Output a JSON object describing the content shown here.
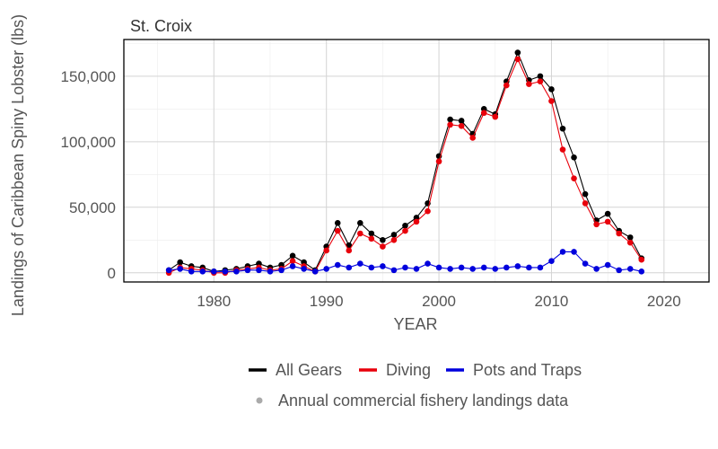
{
  "chart_data": {
    "type": "line",
    "title": "St. Croix",
    "xlabel": "YEAR",
    "ylabel": "Landings of Caribbean Spiny Lobster (lbs)",
    "xlim": [
      1972,
      2024
    ],
    "ylim": [
      -7000,
      178000
    ],
    "x_ticks": [
      1980,
      1990,
      2000,
      2010,
      2020
    ],
    "y_ticks": [
      0,
      50000,
      100000,
      150000
    ],
    "y_tick_labels": [
      "0",
      "50,000",
      "100,000",
      "150,000"
    ],
    "grid": true,
    "legend_position": "bottom",
    "legend_note": "Annual commercial fishery landings data",
    "x": [
      1976,
      1977,
      1978,
      1979,
      1980,
      1981,
      1982,
      1983,
      1984,
      1985,
      1986,
      1987,
      1988,
      1989,
      1990,
      1991,
      1992,
      1993,
      1994,
      1995,
      1996,
      1997,
      1998,
      1999,
      2000,
      2001,
      2002,
      2003,
      2004,
      2005,
      2006,
      2007,
      2008,
      2009,
      2010,
      2011,
      2012,
      2013,
      2014,
      2015,
      2016,
      2017,
      2018
    ],
    "series": [
      {
        "name": "All Gears",
        "color": "#000000",
        "values": [
          2000,
          8000,
          5000,
          4000,
          1000,
          2000,
          3000,
          5000,
          7000,
          4000,
          6000,
          13000,
          8000,
          2000,
          20000,
          38000,
          21000,
          38000,
          30000,
          25000,
          29000,
          36000,
          42000,
          53000,
          89000,
          117000,
          116000,
          106000,
          125000,
          121000,
          146000,
          168000,
          147000,
          150000,
          140000,
          110000,
          88000,
          60000,
          40000,
          45000,
          32000,
          27000,
          11000
        ]
      },
      {
        "name": "Diving",
        "color": "#e8000b",
        "values": [
          0,
          4000,
          3000,
          2000,
          0,
          0,
          2000,
          3000,
          4000,
          2000,
          3000,
          9000,
          5000,
          1000,
          17000,
          32000,
          17000,
          30000,
          26000,
          20000,
          25000,
          32000,
          39000,
          47000,
          85000,
          113000,
          112000,
          103000,
          122000,
          119000,
          143000,
          163000,
          144000,
          146000,
          131000,
          94000,
          72000,
          53000,
          37000,
          39000,
          30000,
          23000,
          10000
        ]
      },
      {
        "name": "Pots and Traps",
        "color": "#0000dd",
        "values": [
          2000,
          3000,
          1000,
          1000,
          1000,
          1000,
          1000,
          2000,
          2000,
          1000,
          2000,
          5000,
          3000,
          1000,
          3000,
          6000,
          4000,
          7000,
          4000,
          5000,
          2000,
          4000,
          3000,
          7000,
          4000,
          3000,
          4000,
          3000,
          4000,
          3000,
          4000,
          5000,
          4000,
          4000,
          9000,
          16000,
          16000,
          7000,
          3000,
          6000,
          2000,
          3000,
          1000
        ]
      }
    ]
  }
}
